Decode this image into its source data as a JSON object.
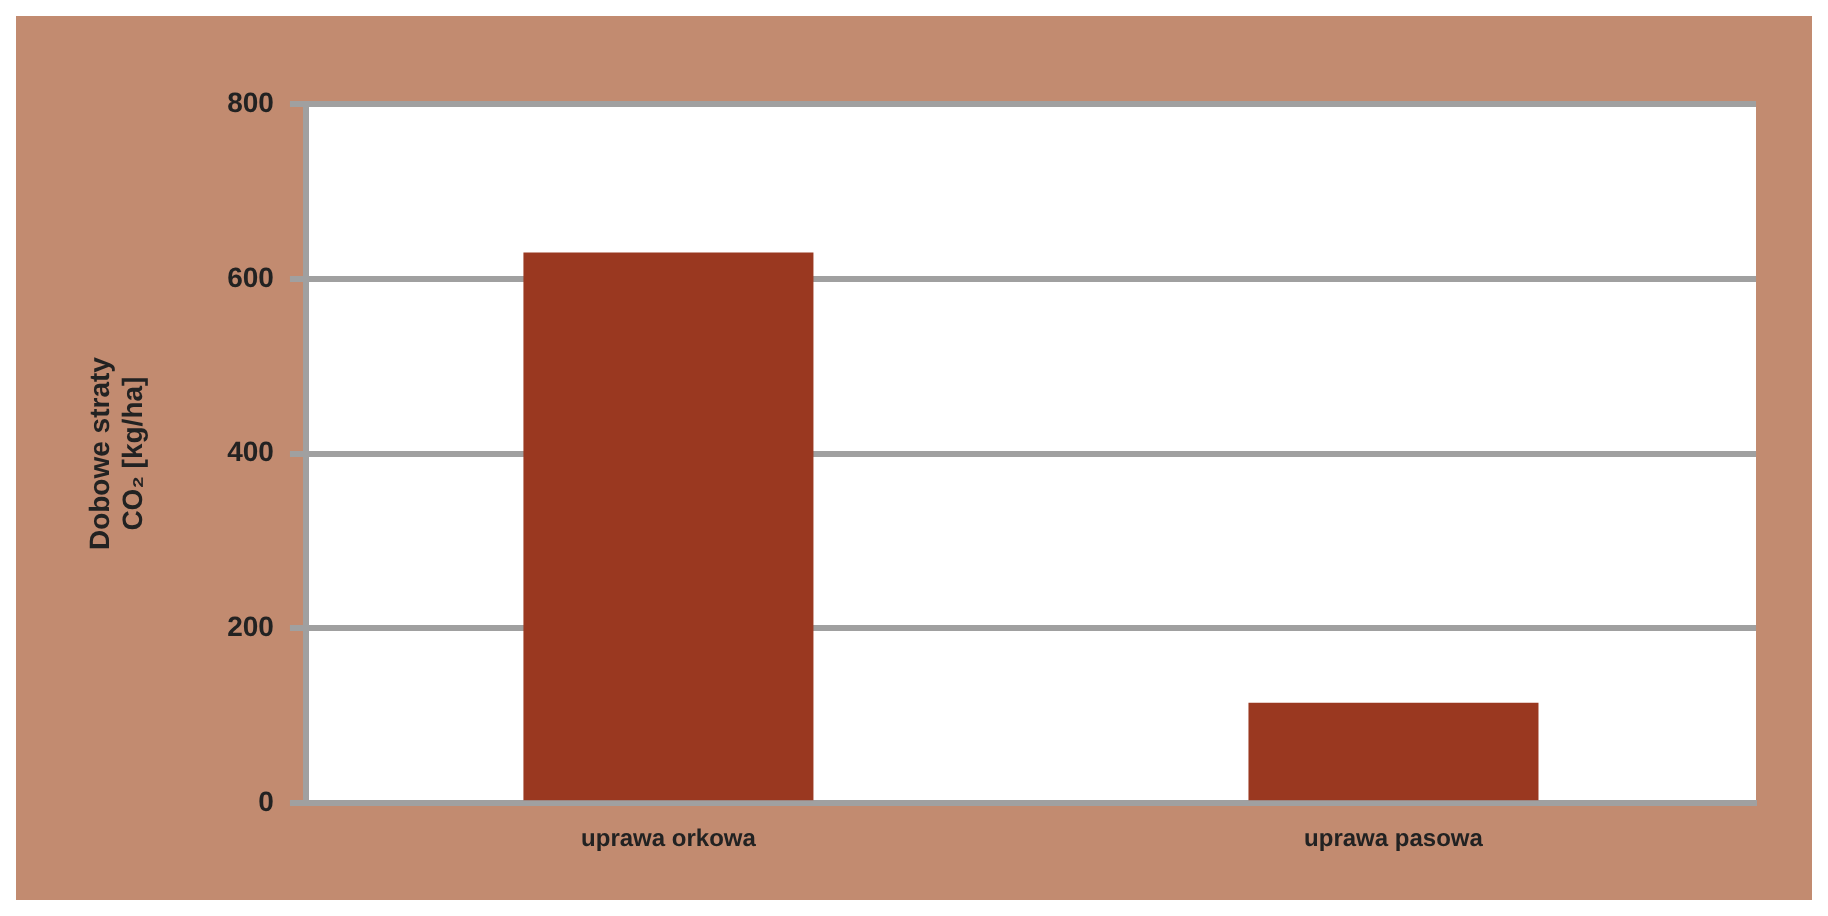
{
  "chart_data": {
    "type": "bar",
    "ylabel": "Dobowe straty\nCO₂ [kg/ha]",
    "categories": [
      "uprawa orkowa",
      "uprawa pasowa"
    ],
    "values": [
      630,
      115
    ],
    "color": "#9a3820",
    "ylim": [
      0,
      800
    ],
    "yticks": [
      0,
      200,
      400,
      600,
      800
    ],
    "grid": "y",
    "legend": false
  }
}
